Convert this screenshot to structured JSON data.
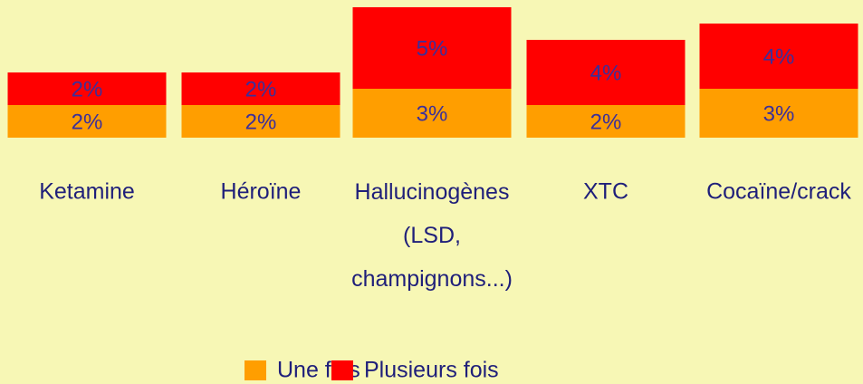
{
  "chart_data": {
    "type": "stacked_bar",
    "categories": [
      "Ketamine",
      "Héroïne",
      "Hallucinogènes (LSD, champignons...)",
      "XTC",
      "Cocaïne/crack"
    ],
    "series": [
      {
        "name": "Une fois",
        "color": "#ff9e00",
        "values": [
          2,
          2,
          3,
          2,
          3
        ],
        "value_labels": [
          "2%",
          "2%",
          "3%",
          "2%",
          "3%"
        ]
      },
      {
        "name": "Plusieurs fois",
        "color": "#ff0000",
        "values": [
          2,
          2,
          5,
          4,
          4
        ],
        "value_labels": [
          "2%",
          "2%",
          "5%",
          "4%",
          "4%"
        ]
      }
    ],
    "legend": "bottom"
  }
}
